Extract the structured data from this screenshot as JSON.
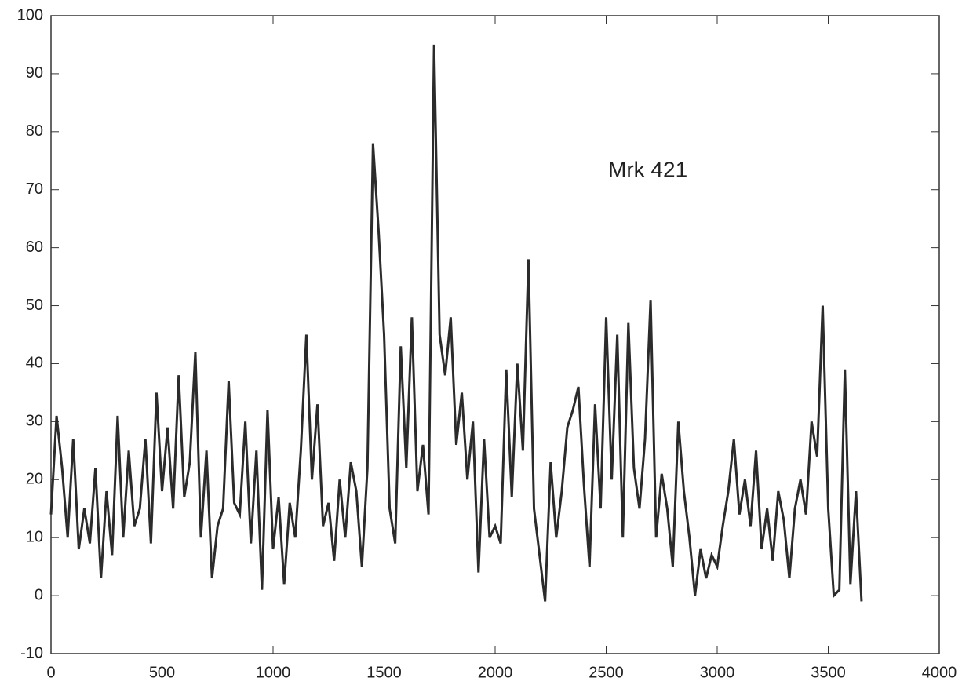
{
  "chart_data": {
    "type": "line",
    "annotation": "Mrk 421",
    "x": [
      0,
      25,
      50,
      75,
      100,
      125,
      150,
      175,
      200,
      225,
      250,
      275,
      300,
      325,
      350,
      375,
      400,
      425,
      450,
      475,
      500,
      525,
      550,
      575,
      600,
      625,
      650,
      675,
      700,
      725,
      750,
      775,
      800,
      825,
      850,
      875,
      900,
      925,
      950,
      975,
      1000,
      1025,
      1050,
      1075,
      1100,
      1125,
      1150,
      1175,
      1200,
      1225,
      1250,
      1275,
      1300,
      1325,
      1350,
      1375,
      1400,
      1425,
      1450,
      1475,
      1500,
      1525,
      1550,
      1575,
      1600,
      1625,
      1650,
      1675,
      1700,
      1725,
      1750,
      1775,
      1800,
      1825,
      1850,
      1875,
      1900,
      1925,
      1950,
      1975,
      2000,
      2025,
      2050,
      2075,
      2100,
      2125,
      2150,
      2175,
      2200,
      2225,
      2250,
      2275,
      2300,
      2325,
      2350,
      2375,
      2400,
      2425,
      2450,
      2475,
      2500,
      2525,
      2550,
      2575,
      2600,
      2625,
      2650,
      2675,
      2700,
      2725,
      2750,
      2775,
      2800,
      2825,
      2850,
      2875,
      2900,
      2925,
      2950,
      2975,
      3000,
      3025,
      3050,
      3075,
      3100,
      3125,
      3150,
      3175,
      3200,
      3225,
      3250,
      3275,
      3300,
      3325,
      3350,
      3375,
      3400,
      3425,
      3450,
      3475,
      3500,
      3525,
      3550,
      3575,
      3600,
      3625,
      3650
    ],
    "series": [
      {
        "color": "#2b2b2b",
        "values": [
          14,
          31,
          22,
          10,
          27,
          8,
          15,
          9,
          22,
          3,
          18,
          7,
          31,
          10,
          25,
          12,
          15,
          27,
          9,
          35,
          18,
          29,
          15,
          38,
          17,
          23,
          42,
          10,
          25,
          3,
          12,
          15,
          37,
          16,
          14,
          30,
          9,
          25,
          1,
          32,
          8,
          17,
          2,
          16,
          10,
          25,
          45,
          20,
          33,
          12,
          16,
          6,
          20,
          10,
          23,
          18,
          5,
          22,
          78,
          63,
          45,
          15,
          9,
          43,
          22,
          48,
          18,
          26,
          14,
          95,
          45,
          38,
          48,
          26,
          35,
          20,
          30,
          4,
          27,
          10,
          12,
          9,
          39,
          17,
          40,
          25,
          58,
          15,
          7,
          -1,
          23,
          10,
          18,
          29,
          32,
          36,
          19,
          5,
          33,
          15,
          48,
          20,
          45,
          10,
          47,
          22,
          15,
          27,
          51,
          10,
          21,
          15,
          5,
          30,
          18,
          10,
          0,
          8,
          3,
          7,
          5,
          12,
          18,
          27,
          14,
          20,
          12,
          25,
          8,
          15,
          6,
          18,
          13,
          3,
          15,
          20,
          14,
          30,
          24,
          50,
          15,
          0,
          1,
          39,
          2,
          18,
          -1
        ]
      }
    ],
    "xlim": [
      0,
      4000
    ],
    "xticks": [
      0,
      500,
      1000,
      1500,
      2000,
      2500,
      3000,
      3500,
      4000
    ],
    "ylim": [
      -10,
      100
    ],
    "yticks": [
      -10,
      0,
      10,
      20,
      30,
      40,
      50,
      60,
      70,
      80,
      90,
      100
    ]
  }
}
